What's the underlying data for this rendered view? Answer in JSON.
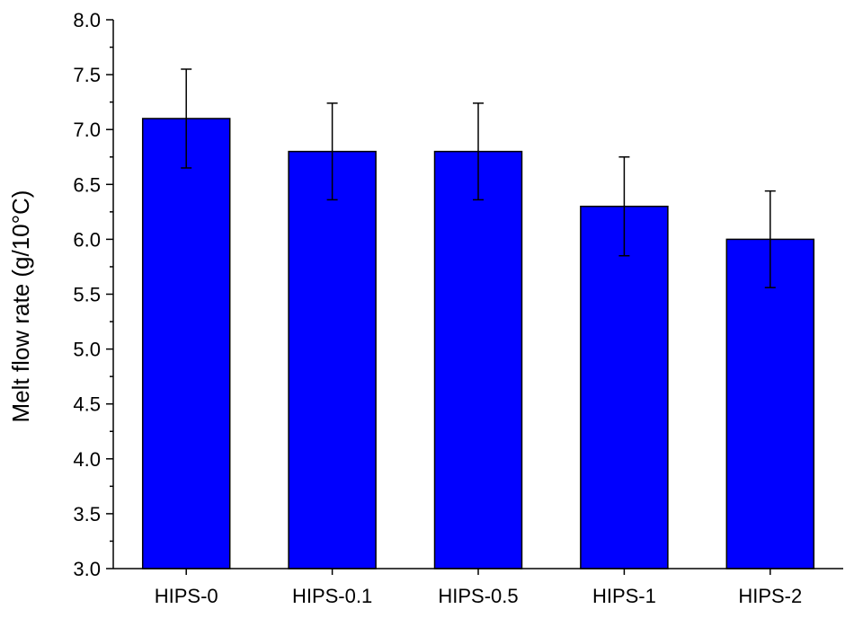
{
  "colors": {
    "bar_fill": "#0000FF",
    "bar_stroke": "#000000",
    "axis": "#000000",
    "background": "#FFFFFF"
  },
  "chart_data": {
    "type": "bar",
    "title": "",
    "xlabel": "",
    "ylabel": "Melt flow rate (g/10°C)",
    "categories": [
      "HIPS-0",
      "HIPS-0.1",
      "HIPS-0.5",
      "HIPS-1",
      "HIPS-2"
    ],
    "values": [
      7.1,
      6.8,
      6.8,
      6.3,
      6.0
    ],
    "error": [
      0.45,
      0.44,
      0.44,
      0.45,
      0.44
    ],
    "ylim": [
      3.0,
      8.0
    ],
    "yticks": [
      "3.0",
      "3.5",
      "4.0",
      "4.5",
      "5.0",
      "5.5",
      "6.0",
      "6.5",
      "7.0",
      "7.5",
      "8.0"
    ],
    "grid": false,
    "legend": "none"
  }
}
